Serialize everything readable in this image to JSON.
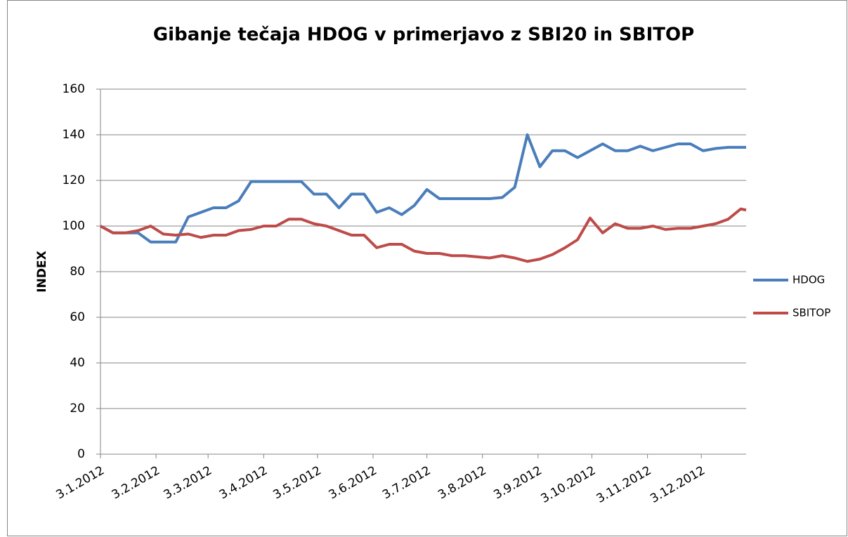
{
  "chart_data": {
    "type": "line",
    "title": "Gibanje tečaja HDOG v primerjavo z SBI20 in SBITOP",
    "y_label": "INDEX",
    "x": [
      "2012-01-03",
      "2012-01-10",
      "2012-01-17",
      "2012-01-24",
      "2012-01-31",
      "2012-02-07",
      "2012-02-14",
      "2012-02-21",
      "2012-02-28",
      "2012-03-06",
      "2012-03-13",
      "2012-03-20",
      "2012-03-27",
      "2012-04-03",
      "2012-04-10",
      "2012-04-17",
      "2012-04-24",
      "2012-05-01",
      "2012-05-08",
      "2012-05-15",
      "2012-05-22",
      "2012-05-29",
      "2012-06-05",
      "2012-06-12",
      "2012-06-19",
      "2012-06-26",
      "2012-07-03",
      "2012-07-10",
      "2012-07-17",
      "2012-07-24",
      "2012-07-31",
      "2012-08-07",
      "2012-08-14",
      "2012-08-21",
      "2012-08-28",
      "2012-09-04",
      "2012-09-11",
      "2012-09-18",
      "2012-09-25",
      "2012-10-02",
      "2012-10-09",
      "2012-10-16",
      "2012-10-23",
      "2012-10-30",
      "2012-11-06",
      "2012-11-13",
      "2012-11-20",
      "2012-11-27",
      "2012-12-04",
      "2012-12-11",
      "2012-12-18",
      "2012-12-25",
      "2012-12-28"
    ],
    "series": [
      {
        "name": "HDOG",
        "color": "#4a7ebb",
        "values": [
          100,
          97,
          97,
          97,
          93,
          93,
          93,
          104,
          106,
          108,
          108,
          111,
          119.5,
          119.5,
          119.5,
          119.5,
          119.5,
          114,
          114,
          108,
          114,
          114,
          106,
          108,
          105,
          109,
          116,
          112,
          112,
          112,
          112,
          112,
          112.5,
          117,
          140,
          126,
          133,
          133,
          130,
          133,
          136,
          133,
          133,
          135,
          133,
          134.5,
          136,
          136,
          133,
          134,
          134.5,
          134.5,
          134.5
        ]
      },
      {
        "name": "SBITOP",
        "color": "#be4b48",
        "values": [
          100,
          97,
          97,
          98,
          100,
          96.5,
          96,
          96.5,
          95,
          96,
          96,
          98,
          98.5,
          100,
          100,
          103,
          103,
          101,
          100,
          98,
          96,
          96,
          90.5,
          92,
          92,
          89,
          88,
          88,
          87,
          87,
          86.5,
          86,
          87,
          86,
          84.5,
          85.5,
          87.5,
          90.5,
          94,
          103.5,
          97,
          101,
          99,
          99,
          100,
          98.5,
          99,
          99,
          100,
          101,
          103,
          107.5,
          107
        ]
      }
    ],
    "xlim": [
      "2012-01-03",
      "2012-12-28"
    ],
    "xticks": [
      {
        "value": "2012-01-03",
        "label": "3.1.2012"
      },
      {
        "value": "2012-02-03",
        "label": "3.2.2012"
      },
      {
        "value": "2012-03-03",
        "label": "3.3.2012"
      },
      {
        "value": "2012-04-03",
        "label": "3.4.2012"
      },
      {
        "value": "2012-05-03",
        "label": "3.5.2012"
      },
      {
        "value": "2012-06-03",
        "label": "3.6.2012"
      },
      {
        "value": "2012-07-03",
        "label": "3.7.2012"
      },
      {
        "value": "2012-08-03",
        "label": "3.8.2012"
      },
      {
        "value": "2012-09-03",
        "label": "3.9.2012"
      },
      {
        "value": "2012-10-03",
        "label": "3.10.2012"
      },
      {
        "value": "2012-11-03",
        "label": "3.11.2012"
      },
      {
        "value": "2012-12-03",
        "label": "3.12.2012"
      }
    ],
    "ylim": [
      0,
      160
    ],
    "yticks": [
      0,
      20,
      40,
      60,
      80,
      100,
      120,
      140,
      160
    ],
    "grid": true,
    "legend": "right"
  }
}
